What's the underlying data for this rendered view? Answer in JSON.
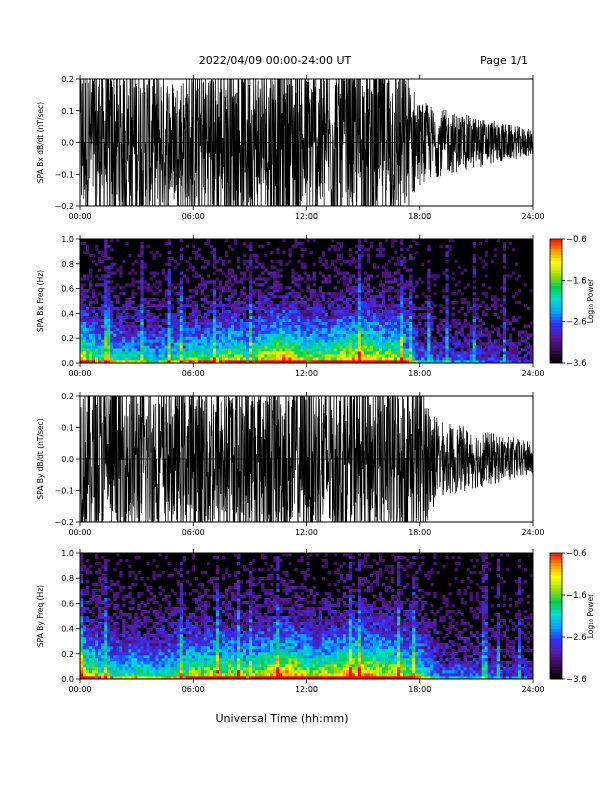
{
  "header": {
    "title": "2022/04/09  00:00-24:00 UT",
    "page": "Page 1/1"
  },
  "footer": {
    "xlabel": "Universal Time (hh:mm)"
  },
  "colors": {
    "trace": "#000000",
    "background": "#000000",
    "colormap": [
      "#000000",
      "#3a0a55",
      "#5a1aa0",
      "#3030ff",
      "#00a0ff",
      "#00e0d0",
      "#00d050",
      "#a0e000",
      "#ffff00",
      "#ff9000",
      "#ff0000"
    ]
  },
  "chart_data": [
    {
      "type": "line",
      "id": "bx-timeseries",
      "ylabel": "SPA Bx dB/dt (nT/sec)",
      "xlim": [
        "00:00",
        "24:00"
      ],
      "ylim": [
        -0.2,
        0.2
      ],
      "x_ticks": [
        "00:00",
        "06:00",
        "12:00",
        "18:00",
        "24:00"
      ],
      "y_ticks": [
        {
          "v": 0.2,
          "label": "0.2"
        },
        {
          "v": 0.1,
          "label": "0.1"
        },
        {
          "v": 0.0,
          "label": "0.0"
        },
        {
          "v": -0.1,
          "label": "−0.1"
        },
        {
          "v": -0.2,
          "label": "−0.2"
        }
      ],
      "envelope_hours": [
        0,
        1,
        2,
        3,
        4,
        5,
        6,
        7,
        8,
        9,
        10,
        11,
        12,
        13,
        14,
        15,
        16,
        17,
        18,
        19,
        20,
        21,
        22,
        23,
        24
      ],
      "envelope_amplitude": [
        0.2,
        0.2,
        0.2,
        0.2,
        0.2,
        0.15,
        0.2,
        0.2,
        0.2,
        0.2,
        0.2,
        0.2,
        0.2,
        0.2,
        0.2,
        0.2,
        0.2,
        0.2,
        0.1,
        0.08,
        0.07,
        0.06,
        0.05,
        0.04,
        0.03
      ]
    },
    {
      "type": "heatmap",
      "id": "bx-spectrogram",
      "ylabel": "SPA Bx Freq (Hz)",
      "xlim": [
        "00:00",
        "24:00"
      ],
      "ylim": [
        0.0,
        1.0
      ],
      "x_ticks": [
        "00:00",
        "06:00",
        "12:00",
        "18:00",
        "24:00"
      ],
      "y_ticks": [
        {
          "v": 1.0,
          "label": "1.0"
        },
        {
          "v": 0.8,
          "label": "0.8"
        },
        {
          "v": 0.6,
          "label": "0.6"
        },
        {
          "v": 0.4,
          "label": "0.4"
        },
        {
          "v": 0.2,
          "label": "0.2"
        },
        {
          "v": 0.0,
          "label": "0.0"
        }
      ],
      "colorbar": {
        "label": "Log₁₀ Power",
        "range": [
          -3.6,
          -0.6
        ],
        "ticks": [
          {
            "v": -0.6,
            "label": "−0.6"
          },
          {
            "v": -1.6,
            "label": "−1.6"
          },
          {
            "v": -2.6,
            "label": "−2.6"
          },
          {
            "v": -3.6,
            "label": "−3.6"
          }
        ]
      },
      "activity_hours": [
        0,
        1,
        2,
        3,
        4,
        5,
        6,
        7,
        8,
        9,
        10,
        11,
        12,
        13,
        14,
        15,
        16,
        17,
        18,
        19,
        20,
        21,
        22,
        23,
        24
      ],
      "activity_level": [
        0.9,
        0.7,
        0.6,
        0.6,
        0.5,
        0.6,
        0.7,
        0.7,
        0.8,
        0.7,
        0.9,
        1.0,
        0.8,
        0.8,
        0.9,
        0.95,
        0.85,
        0.8,
        0.4,
        0.3,
        0.3,
        0.3,
        0.25,
        0.2,
        0.2
      ]
    },
    {
      "type": "line",
      "id": "by-timeseries",
      "ylabel": "SPA By dB/dt (nT/sec)",
      "xlim": [
        "00:00",
        "24:00"
      ],
      "ylim": [
        -0.2,
        0.2
      ],
      "x_ticks": [
        "00:00",
        "06:00",
        "12:00",
        "18:00",
        "24:00"
      ],
      "y_ticks": [
        {
          "v": 0.2,
          "label": "0.2"
        },
        {
          "v": 0.1,
          "label": "0.1"
        },
        {
          "v": 0.0,
          "label": "0.0"
        },
        {
          "v": -0.1,
          "label": "−0.1"
        },
        {
          "v": -0.2,
          "label": "−0.2"
        }
      ],
      "envelope_hours": [
        0,
        1,
        2,
        3,
        4,
        5,
        6,
        7,
        8,
        9,
        10,
        11,
        12,
        13,
        14,
        15,
        16,
        17,
        18,
        19,
        20,
        21,
        22,
        23,
        24
      ],
      "envelope_amplitude": [
        0.2,
        0.2,
        0.2,
        0.2,
        0.2,
        0.17,
        0.2,
        0.2,
        0.2,
        0.2,
        0.2,
        0.2,
        0.2,
        0.2,
        0.2,
        0.2,
        0.2,
        0.2,
        0.2,
        0.09,
        0.08,
        0.07,
        0.06,
        0.05,
        0.04
      ]
    },
    {
      "type": "heatmap",
      "id": "by-spectrogram",
      "ylabel": "SPA By Freq (Hz)",
      "xlim": [
        "00:00",
        "24:00"
      ],
      "ylim": [
        0.0,
        1.0
      ],
      "x_ticks": [
        "00:00",
        "06:00",
        "12:00",
        "18:00",
        "24:00"
      ],
      "y_ticks": [
        {
          "v": 1.0,
          "label": "1.0"
        },
        {
          "v": 0.8,
          "label": "0.8"
        },
        {
          "v": 0.6,
          "label": "0.6"
        },
        {
          "v": 0.4,
          "label": "0.4"
        },
        {
          "v": 0.2,
          "label": "0.2"
        },
        {
          "v": 0.0,
          "label": "0.0"
        }
      ],
      "colorbar": {
        "label": "Log₁₀ Power",
        "range": [
          -3.6,
          -0.6
        ],
        "ticks": [
          {
            "v": -0.6,
            "label": "−0.6"
          },
          {
            "v": -1.6,
            "label": "−1.6"
          },
          {
            "v": -2.6,
            "label": "−2.6"
          },
          {
            "v": -3.6,
            "label": "−3.6"
          }
        ]
      },
      "activity_hours": [
        0,
        1,
        2,
        3,
        4,
        5,
        6,
        7,
        8,
        9,
        10,
        11,
        12,
        13,
        14,
        15,
        16,
        17,
        18,
        19,
        20,
        21,
        22,
        23,
        24
      ],
      "activity_level": [
        0.95,
        0.75,
        0.6,
        0.65,
        0.55,
        0.65,
        0.8,
        0.8,
        0.85,
        0.75,
        0.95,
        1.0,
        0.85,
        0.85,
        0.95,
        1.0,
        0.9,
        0.85,
        0.7,
        0.35,
        0.35,
        0.35,
        0.3,
        0.25,
        0.25
      ]
    }
  ]
}
